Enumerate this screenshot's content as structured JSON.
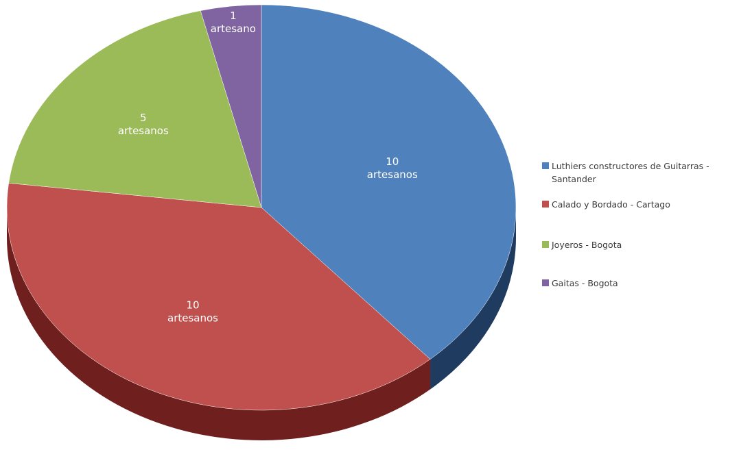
{
  "chart_data": {
    "type": "pie",
    "style": "3d",
    "slices": [
      {
        "label": "Luthiers constructores de Guitarras - Santander",
        "value": 10,
        "data_label": [
          "10",
          "artesanos"
        ],
        "color": "#4f81bd",
        "side_color": "#1f3b60",
        "label_lines": [
          "Luthiers constructores de Guitarras -",
          "Santander"
        ]
      },
      {
        "label": "Calado y Bordado - Cartago",
        "value": 10,
        "data_label": [
          "10",
          "artesanos"
        ],
        "color": "#c0504d",
        "side_color": "#6e1f1e",
        "label_lines": [
          "Calado y Bordado - Cartago"
        ]
      },
      {
        "label": "Joyeros - Bogota",
        "value": 5,
        "data_label": [
          "5",
          "artesanos"
        ],
        "color": "#9bbb59",
        "side_color": "#4f6326",
        "label_lines": [
          "Joyeros - Bogota"
        ]
      },
      {
        "label": "Gaitas - Bogota",
        "value": 1,
        "data_label": [
          "1",
          "artesano"
        ],
        "color": "#8064a2",
        "side_color": "#3f3152",
        "label_lines": [
          "Gaitas - Bogota"
        ]
      }
    ],
    "legend_position": "right",
    "start": "top",
    "direction": "clockwise"
  }
}
